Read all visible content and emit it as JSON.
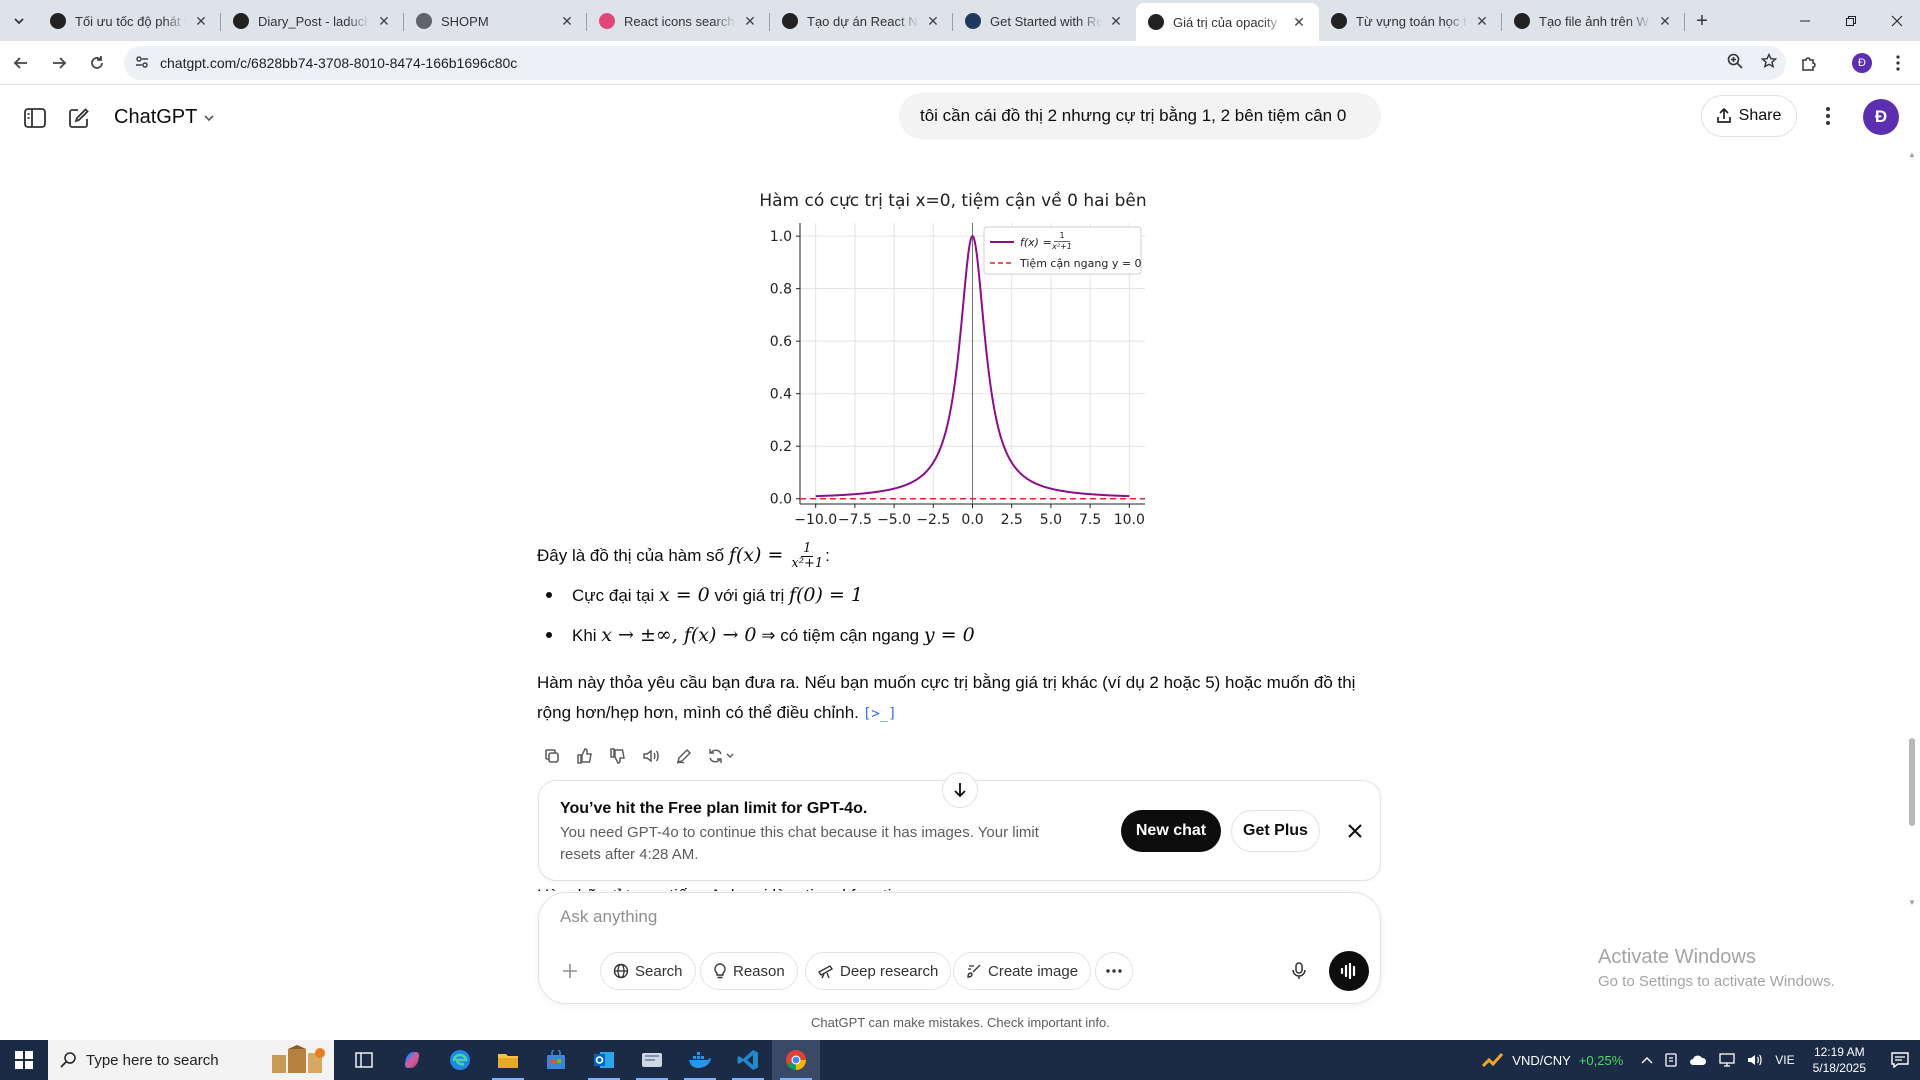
{
  "browser": {
    "tabs": [
      {
        "title": "Tối ưu tốc độ phát triển",
        "favicon": "chatgpt-icon",
        "color": "#222222"
      },
      {
        "title": "Diary_Post - laduchai",
        "favicon": "github-icon",
        "color": "#222222"
      },
      {
        "title": "SHOPM",
        "favicon": "globe-icon",
        "color": "#5f6368"
      },
      {
        "title": "React icons search results",
        "favicon": "react-icon",
        "color": "#e2467b"
      },
      {
        "title": "Tạo dự án React Native",
        "favicon": "chatgpt-icon",
        "color": "#222222"
      },
      {
        "title": "Get Started with React",
        "favicon": "expo-icon",
        "color": "#1e3a5f"
      },
      {
        "title": "Giá trị của opacity",
        "favicon": "chatgpt-icon",
        "color": "#222222",
        "active": true
      },
      {
        "title": "Từ vựng toán học tiếng Anh",
        "favicon": "chatgpt-icon",
        "color": "#222222"
      },
      {
        "title": "Tạo file ảnh trên Windows",
        "favicon": "chatgpt-icon",
        "color": "#222222"
      }
    ],
    "url": "chatgpt.com/c/6828bb74-3708-8010-8474-166b1696c80c"
  },
  "header": {
    "brand": "ChatGPT",
    "user_message": "tôi cần cái đồ thị 2 nhưng cự trị bằng 1, 2 bên tiệm cân 0",
    "share_label": "Share",
    "avatar_initial": "Đ"
  },
  "chart_data": {
    "type": "line",
    "title": "Hàm có cực trị tại x=0, tiệm cận về 0 hai bên",
    "x_range": [
      -10,
      10
    ],
    "xlim": [
      -11,
      11
    ],
    "ylim": [
      -0.02,
      1.05
    ],
    "xticks": [
      "−10.0",
      "−7.5",
      "−5.0",
      "−2.5",
      "0.0",
      "2.5",
      "5.0",
      "7.5",
      "10.0"
    ],
    "yticks": [
      "0.0",
      "0.2",
      "0.4",
      "0.6",
      "0.8",
      "1.0"
    ],
    "grid": true,
    "legend_placement": "top-right",
    "series": [
      {
        "name": "f(x) = 1/(x²+1)",
        "function": "1/(x^2+1)",
        "color": "#8b0e8b",
        "style": "solid"
      },
      {
        "name": "Tiệm cận ngang y = 0",
        "function": "0",
        "color": "#e8242c",
        "style": "dashed"
      }
    ],
    "legend_text": {
      "f_label": "f(x) = ",
      "f_num": "1",
      "f_den": "x²+1",
      "asym_label": "Tiệm cận ngang y = 0"
    }
  },
  "message": {
    "intro_prefix": "Đây là đồ thị của hàm số ",
    "intro_math": "f(x) = ",
    "intro_num": "1",
    "intro_den": "x²+1",
    "intro_suffix": ":",
    "bullet1_a": "Cực đại tại ",
    "bullet1_m1": "x = 0",
    "bullet1_b": " với giá trị ",
    "bullet1_m2": "f(0) = 1",
    "bullet2_a": "Khi ",
    "bullet2_m1": "x → ±∞, f(x) → 0",
    "bullet2_b": " ⇒ có tiệm cận ngang ",
    "bullet2_m2": "y = 0",
    "para1": "Hàm này thỏa yêu cầu bạn đưa ra. Nếu bạn muốn cực trị bằng giá trị khác (ví dụ 2 hoặc 5) hoặc muốn đồ thị",
    "para2": "rộng hơn/hẹp hơn, mình có thể điều chỉnh.",
    "source_chip": "[>_]",
    "peek": "Hàm hữu tỉ trong tiếng Anh gọi là rational function."
  },
  "limit": {
    "title": "You’ve hit the Free plan limit for GPT-4o.",
    "body": "You need GPT-4o to continue this chat because it has images. Your limit resets after 4:28 AM.",
    "new_chat": "New chat",
    "get_plus": "Get Plus"
  },
  "composer": {
    "placeholder": "Ask anything",
    "search": "Search",
    "reason": "Reason",
    "deep_research": "Deep research",
    "create_image": "Create image"
  },
  "disclaimer": "ChatGPT can make mistakes. Check important info.",
  "watermark": {
    "line1": "Activate Windows",
    "line2": "Go to Settings to activate Windows."
  },
  "taskbar": {
    "search_placeholder": "Type here to search",
    "ticker_name": "VND/CNY",
    "ticker_change": "+0,25%",
    "lang": "VIE",
    "time": "12:19 AM",
    "date": "5/18/2025"
  }
}
